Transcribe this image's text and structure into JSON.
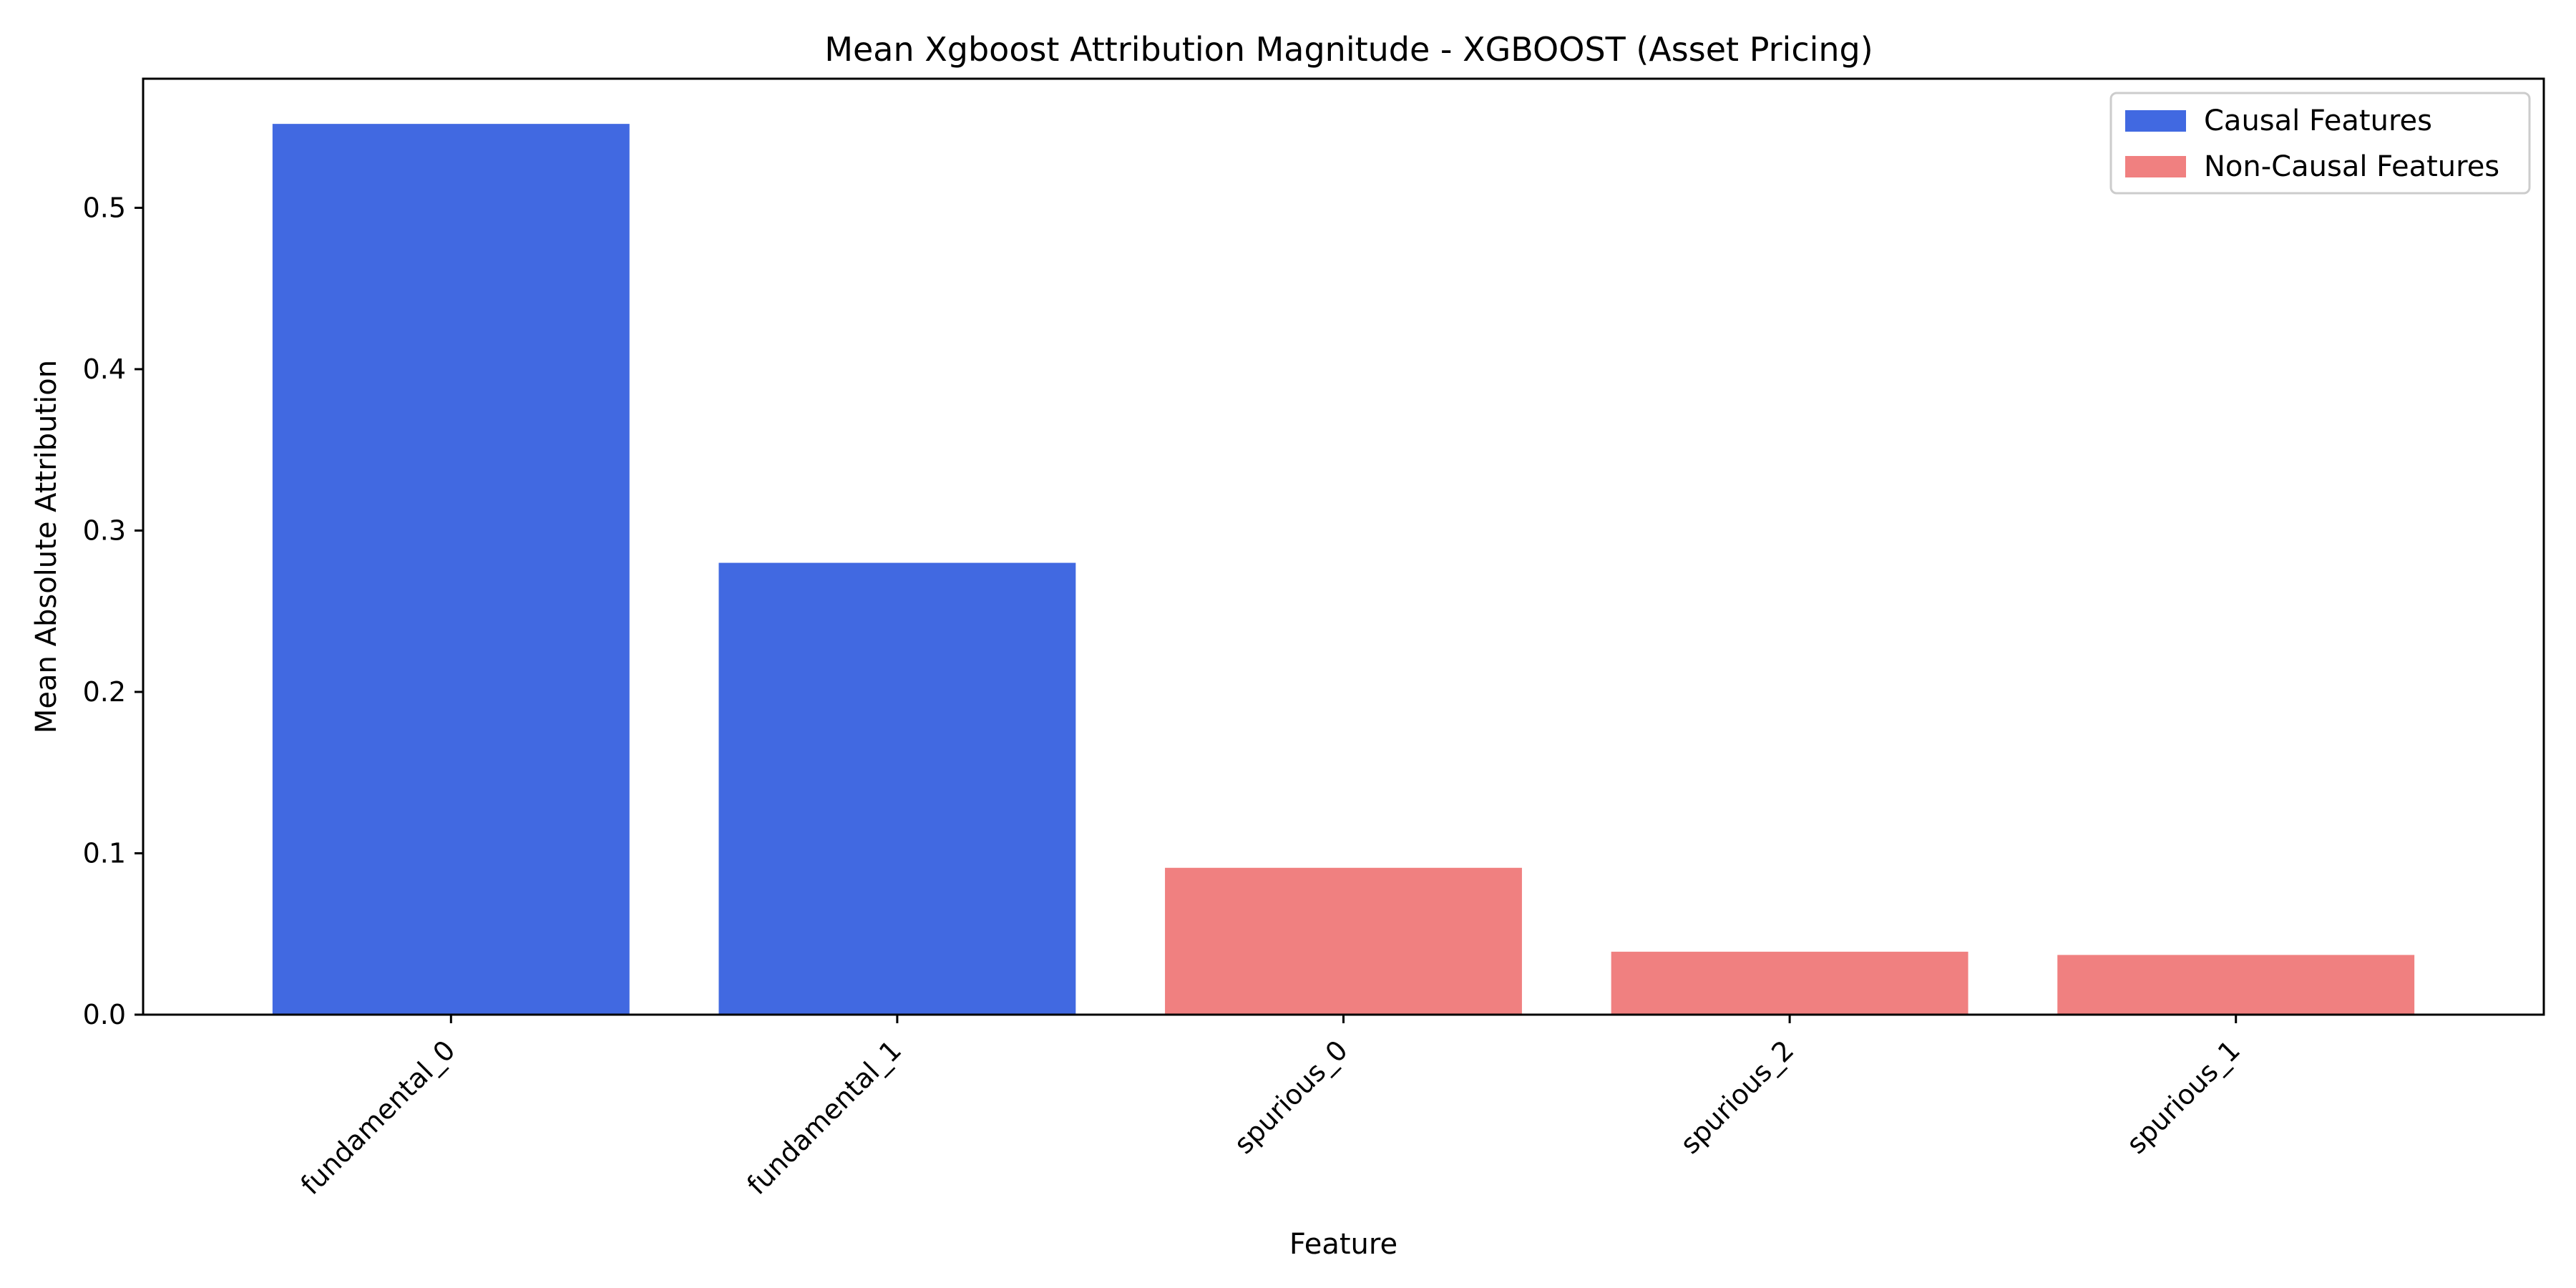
{
  "chart_data": {
    "type": "bar",
    "title": "Mean Xgboost Attribution Magnitude - XGBOOST (Asset Pricing)",
    "xlabel": "Feature",
    "ylabel": "Mean Absolute Attribution",
    "categories": [
      "fundamental_0",
      "fundamental_1",
      "spurious_0",
      "spurious_2",
      "spurious_1"
    ],
    "values": [
      0.552,
      0.28,
      0.091,
      0.039,
      0.037
    ],
    "groups": [
      "causal",
      "causal",
      "non-causal",
      "non-causal",
      "non-causal"
    ],
    "ylim": [
      0,
      0.58
    ],
    "yticks": [
      0.0,
      0.1,
      0.2,
      0.3,
      0.4,
      0.5
    ],
    "ytick_labels": [
      "0.0",
      "0.1",
      "0.2",
      "0.3",
      "0.4",
      "0.5"
    ],
    "grid": false,
    "legend": {
      "placement": "top-right",
      "entries": [
        {
          "key": "causal",
          "label": "Causal Features",
          "color": "#4169e1"
        },
        {
          "key": "non-causal",
          "label": "Non-Causal Features",
          "color": "#f08080"
        }
      ]
    }
  }
}
